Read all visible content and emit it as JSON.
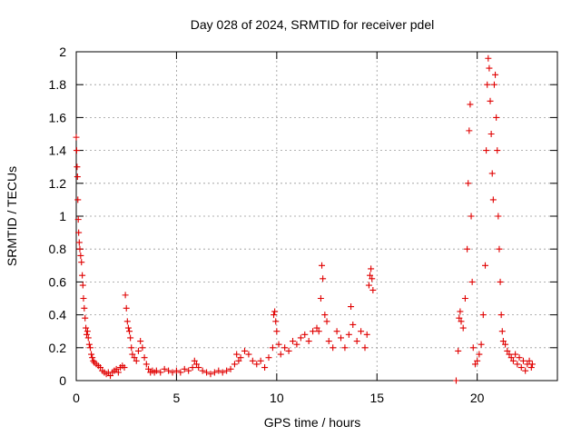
{
  "chart_data": {
    "type": "scatter",
    "title": "Day 028 of 2024, SRMTID for receiver pdel",
    "xlabel": "GPS time / hours",
    "ylabel": "SRMTID / TECUs",
    "xlim": [
      0,
      24
    ],
    "ylim": [
      0,
      2
    ],
    "xticks": [
      0,
      5,
      10,
      15,
      20
    ],
    "yticks": [
      0,
      0.2,
      0.4,
      0.6,
      0.8,
      1,
      1.2,
      1.4,
      1.6,
      1.8,
      2
    ],
    "ytick_labels": [
      "0",
      "0.2",
      "0.4",
      "0.6",
      "0.8",
      "1",
      "1.2",
      "1.4",
      "1.6",
      "1.8",
      "2"
    ],
    "xtick_labels": [
      "0",
      "5",
      "10",
      "15",
      "20"
    ],
    "grid": true,
    "marker": "+",
    "color": "#e00000",
    "series": [
      {
        "name": "SRMTID",
        "points": [
          [
            0.0,
            1.48
          ],
          [
            0.02,
            1.4
          ],
          [
            0.04,
            1.3
          ],
          [
            0.06,
            1.24
          ],
          [
            0.08,
            1.1
          ],
          [
            0.1,
            0.98
          ],
          [
            0.12,
            0.9
          ],
          [
            0.15,
            0.84
          ],
          [
            0.18,
            0.8
          ],
          [
            0.22,
            0.76
          ],
          [
            0.26,
            0.72
          ],
          [
            0.3,
            0.64
          ],
          [
            0.33,
            0.58
          ],
          [
            0.36,
            0.5
          ],
          [
            0.4,
            0.44
          ],
          [
            0.44,
            0.38
          ],
          [
            0.48,
            0.32
          ],
          [
            0.52,
            0.28
          ],
          [
            0.56,
            0.3
          ],
          [
            0.6,
            0.26
          ],
          [
            0.65,
            0.22
          ],
          [
            0.7,
            0.2
          ],
          [
            0.75,
            0.16
          ],
          [
            0.8,
            0.14
          ],
          [
            0.85,
            0.12
          ],
          [
            0.9,
            0.11
          ],
          [
            1.0,
            0.1
          ],
          [
            1.1,
            0.09
          ],
          [
            1.2,
            0.08
          ],
          [
            1.3,
            0.06
          ],
          [
            1.4,
            0.05
          ],
          [
            1.5,
            0.04
          ],
          [
            1.6,
            0.05
          ],
          [
            1.7,
            0.03
          ],
          [
            1.8,
            0.05
          ],
          [
            1.9,
            0.06
          ],
          [
            2.0,
            0.07
          ],
          [
            2.1,
            0.05
          ],
          [
            2.2,
            0.08
          ],
          [
            2.3,
            0.09
          ],
          [
            2.4,
            0.08
          ],
          [
            2.45,
            0.52
          ],
          [
            2.5,
            0.44
          ],
          [
            2.55,
            0.36
          ],
          [
            2.6,
            0.32
          ],
          [
            2.65,
            0.3
          ],
          [
            2.7,
            0.26
          ],
          [
            2.75,
            0.2
          ],
          [
            2.8,
            0.16
          ],
          [
            2.9,
            0.14
          ],
          [
            3.0,
            0.12
          ],
          [
            3.1,
            0.18
          ],
          [
            3.2,
            0.24
          ],
          [
            3.3,
            0.2
          ],
          [
            3.4,
            0.14
          ],
          [
            3.5,
            0.1
          ],
          [
            3.6,
            0.07
          ],
          [
            3.7,
            0.05
          ],
          [
            3.8,
            0.06
          ],
          [
            3.9,
            0.05
          ],
          [
            4.0,
            0.06
          ],
          [
            4.2,
            0.05
          ],
          [
            4.4,
            0.07
          ],
          [
            4.6,
            0.06
          ],
          [
            4.8,
            0.05
          ],
          [
            5.0,
            0.06
          ],
          [
            5.2,
            0.05
          ],
          [
            5.4,
            0.07
          ],
          [
            5.6,
            0.06
          ],
          [
            5.8,
            0.08
          ],
          [
            5.9,
            0.12
          ],
          [
            6.0,
            0.1
          ],
          [
            6.1,
            0.08
          ],
          [
            6.3,
            0.06
          ],
          [
            6.5,
            0.05
          ],
          [
            6.7,
            0.04
          ],
          [
            6.9,
            0.05
          ],
          [
            7.1,
            0.06
          ],
          [
            7.3,
            0.05
          ],
          [
            7.5,
            0.06
          ],
          [
            7.7,
            0.07
          ],
          [
            7.9,
            0.1
          ],
          [
            8.0,
            0.16
          ],
          [
            8.1,
            0.12
          ],
          [
            8.2,
            0.14
          ],
          [
            8.4,
            0.18
          ],
          [
            8.6,
            0.16
          ],
          [
            8.8,
            0.12
          ],
          [
            9.0,
            0.1
          ],
          [
            9.2,
            0.12
          ],
          [
            9.4,
            0.08
          ],
          [
            9.6,
            0.14
          ],
          [
            9.8,
            0.2
          ],
          [
            9.85,
            0.4
          ],
          [
            9.9,
            0.42
          ],
          [
            9.95,
            0.36
          ],
          [
            10.0,
            0.3
          ],
          [
            10.1,
            0.22
          ],
          [
            10.2,
            0.16
          ],
          [
            10.4,
            0.2
          ],
          [
            10.6,
            0.18
          ],
          [
            10.8,
            0.24
          ],
          [
            11.0,
            0.22
          ],
          [
            11.2,
            0.26
          ],
          [
            11.4,
            0.28
          ],
          [
            11.6,
            0.24
          ],
          [
            11.8,
            0.3
          ],
          [
            12.0,
            0.32
          ],
          [
            12.1,
            0.3
          ],
          [
            12.2,
            0.5
          ],
          [
            12.25,
            0.7
          ],
          [
            12.3,
            0.62
          ],
          [
            12.4,
            0.4
          ],
          [
            12.5,
            0.36
          ],
          [
            12.6,
            0.24
          ],
          [
            12.8,
            0.2
          ],
          [
            13.0,
            0.3
          ],
          [
            13.2,
            0.26
          ],
          [
            13.4,
            0.2
          ],
          [
            13.6,
            0.28
          ],
          [
            13.7,
            0.45
          ],
          [
            13.8,
            0.34
          ],
          [
            14.0,
            0.24
          ],
          [
            14.2,
            0.3
          ],
          [
            14.4,
            0.2
          ],
          [
            14.5,
            0.28
          ],
          [
            14.6,
            0.58
          ],
          [
            14.65,
            0.64
          ],
          [
            14.7,
            0.68
          ],
          [
            14.75,
            0.62
          ],
          [
            14.8,
            0.55
          ],
          [
            18.95,
            0.0
          ],
          [
            19.05,
            0.18
          ],
          [
            19.1,
            0.38
          ],
          [
            19.15,
            0.42
          ],
          [
            19.2,
            0.36
          ],
          [
            19.3,
            0.32
          ],
          [
            19.4,
            0.5
          ],
          [
            19.5,
            0.8
          ],
          [
            19.55,
            1.2
          ],
          [
            19.6,
            1.52
          ],
          [
            19.65,
            1.68
          ],
          [
            19.7,
            1.0
          ],
          [
            19.75,
            0.6
          ],
          [
            19.8,
            0.2
          ],
          [
            19.9,
            0.1
          ],
          [
            20.0,
            0.12
          ],
          [
            20.1,
            0.16
          ],
          [
            20.2,
            0.22
          ],
          [
            20.3,
            0.4
          ],
          [
            20.4,
            0.7
          ],
          [
            20.45,
            1.4
          ],
          [
            20.5,
            1.8
          ],
          [
            20.55,
            1.96
          ],
          [
            20.6,
            1.9
          ],
          [
            20.65,
            1.7
          ],
          [
            20.7,
            1.5
          ],
          [
            20.75,
            1.26
          ],
          [
            20.8,
            1.1
          ],
          [
            20.85,
            1.8
          ],
          [
            20.9,
            1.86
          ],
          [
            20.95,
            1.6
          ],
          [
            21.0,
            1.4
          ],
          [
            21.05,
            1.0
          ],
          [
            21.1,
            0.8
          ],
          [
            21.15,
            0.6
          ],
          [
            21.2,
            0.4
          ],
          [
            21.25,
            0.3
          ],
          [
            21.3,
            0.24
          ],
          [
            21.4,
            0.22
          ],
          [
            21.5,
            0.18
          ],
          [
            21.6,
            0.16
          ],
          [
            21.7,
            0.14
          ],
          [
            21.8,
            0.12
          ],
          [
            21.9,
            0.16
          ],
          [
            22.0,
            0.1
          ],
          [
            22.1,
            0.14
          ],
          [
            22.2,
            0.08
          ],
          [
            22.3,
            0.12
          ],
          [
            22.4,
            0.06
          ],
          [
            22.5,
            0.1
          ],
          [
            22.6,
            0.12
          ],
          [
            22.7,
            0.08
          ],
          [
            22.75,
            0.1
          ]
        ]
      }
    ]
  }
}
